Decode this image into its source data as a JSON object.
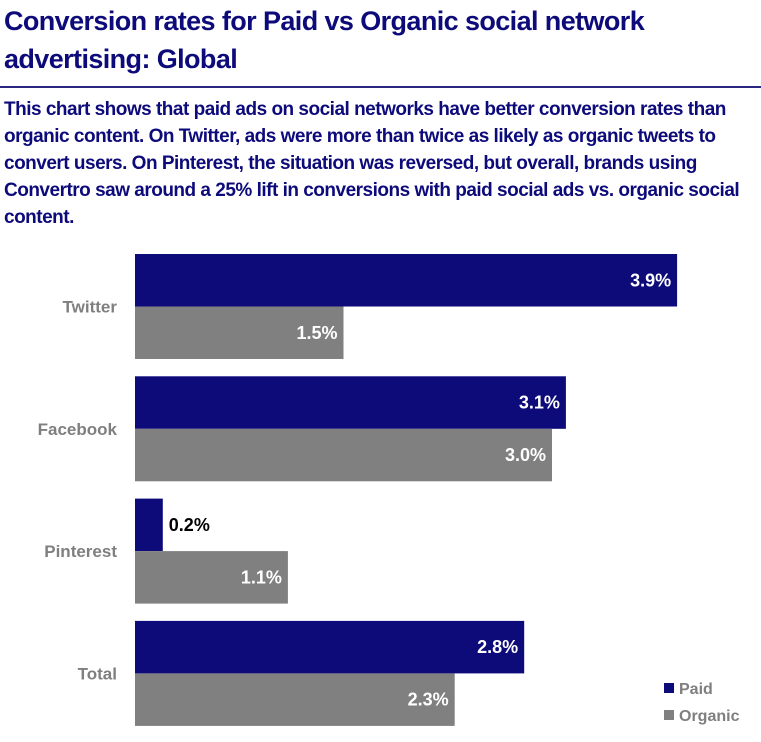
{
  "chart_data": {
    "type": "bar",
    "orientation": "horizontal",
    "title": "Conversion rates for Paid vs Organic social network advertising: Global",
    "subtitle": "This chart shows that paid ads on social networks have better conversion rates than organic content. On Twitter, ads were more than twice as likely as organic tweets to convert users. On Pinterest, the situation was reversed, but overall, brands using Convertro saw around a 25% lift in conversions with paid social ads vs. organic social content.",
    "categories": [
      "Twitter",
      "Facebook",
      "Pinterest",
      "Total"
    ],
    "series": [
      {
        "name": "Paid",
        "values": [
          3.9,
          3.1,
          0.2,
          2.8
        ],
        "labels": [
          "3.9%",
          "3.1%",
          "0.2%",
          "2.8%"
        ],
        "color": "#0d0a7a"
      },
      {
        "name": "Organic",
        "values": [
          1.5,
          3.0,
          1.1,
          2.3
        ],
        "labels": [
          "1.5%",
          "3.0%",
          "1.1%",
          "2.3%"
        ],
        "color": "#808080"
      }
    ],
    "xlim": [
      0,
      4.5
    ],
    "grid": false,
    "axes_visible": false,
    "legend_position": "bottom-right"
  }
}
